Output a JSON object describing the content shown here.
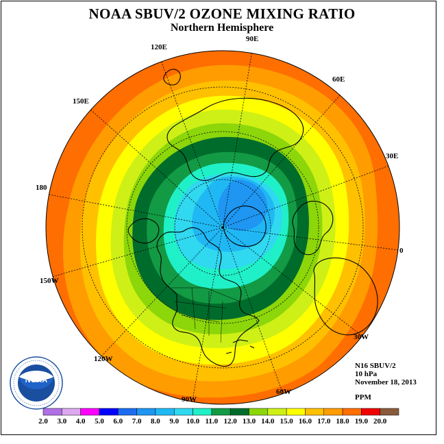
{
  "title": "NOAA SBUV/2 OZONE MIXING RATIO",
  "subtitle": "Northern Hemisphere",
  "longitude_labels": [
    "90E",
    "60E",
    "30E",
    "0",
    "30W",
    "60W",
    "90W",
    "120W",
    "150W",
    "180",
    "150E",
    "120E"
  ],
  "info": {
    "instrument": "N16 SBUV/2",
    "level": "10 hPa",
    "date": "November 18, 2013",
    "units": "PPM"
  },
  "colorbar": {
    "ticks": [
      "2.0",
      "3.0",
      "4.0",
      "5.0",
      "6.0",
      "7.0",
      "8.0",
      "9.0",
      "10.0",
      "11.0",
      "12.0",
      "13.0",
      "14.0",
      "15.0",
      "16.0",
      "17.0",
      "18.0",
      "19.0",
      "20.0"
    ],
    "colors": [
      "#b070e8",
      "#dca8ee",
      "#ff00ff",
      "#0000ff",
      "#1c6cf0",
      "#1e96f2",
      "#20b8f4",
      "#30d8f0",
      "#20f0c8",
      "#139a44",
      "#006c2c",
      "#8cd60a",
      "#cef016",
      "#ffff00",
      "#ffc000",
      "#ff9c00",
      "#ff6e00",
      "#f00000",
      "#8a5a3c"
    ]
  },
  "map_levels_ppm": [
    11.0,
    12.0,
    13.0,
    14.0,
    15.0,
    16.0,
    17.0,
    18.0,
    19.0
  ],
  "logo": {
    "text": "NOAA",
    "ring_text": "NATIONAL OCEANIC AND ATMOSPHERIC ADMINISTRATION · U.S. DEPARTMENT OF COMMERCE"
  }
}
